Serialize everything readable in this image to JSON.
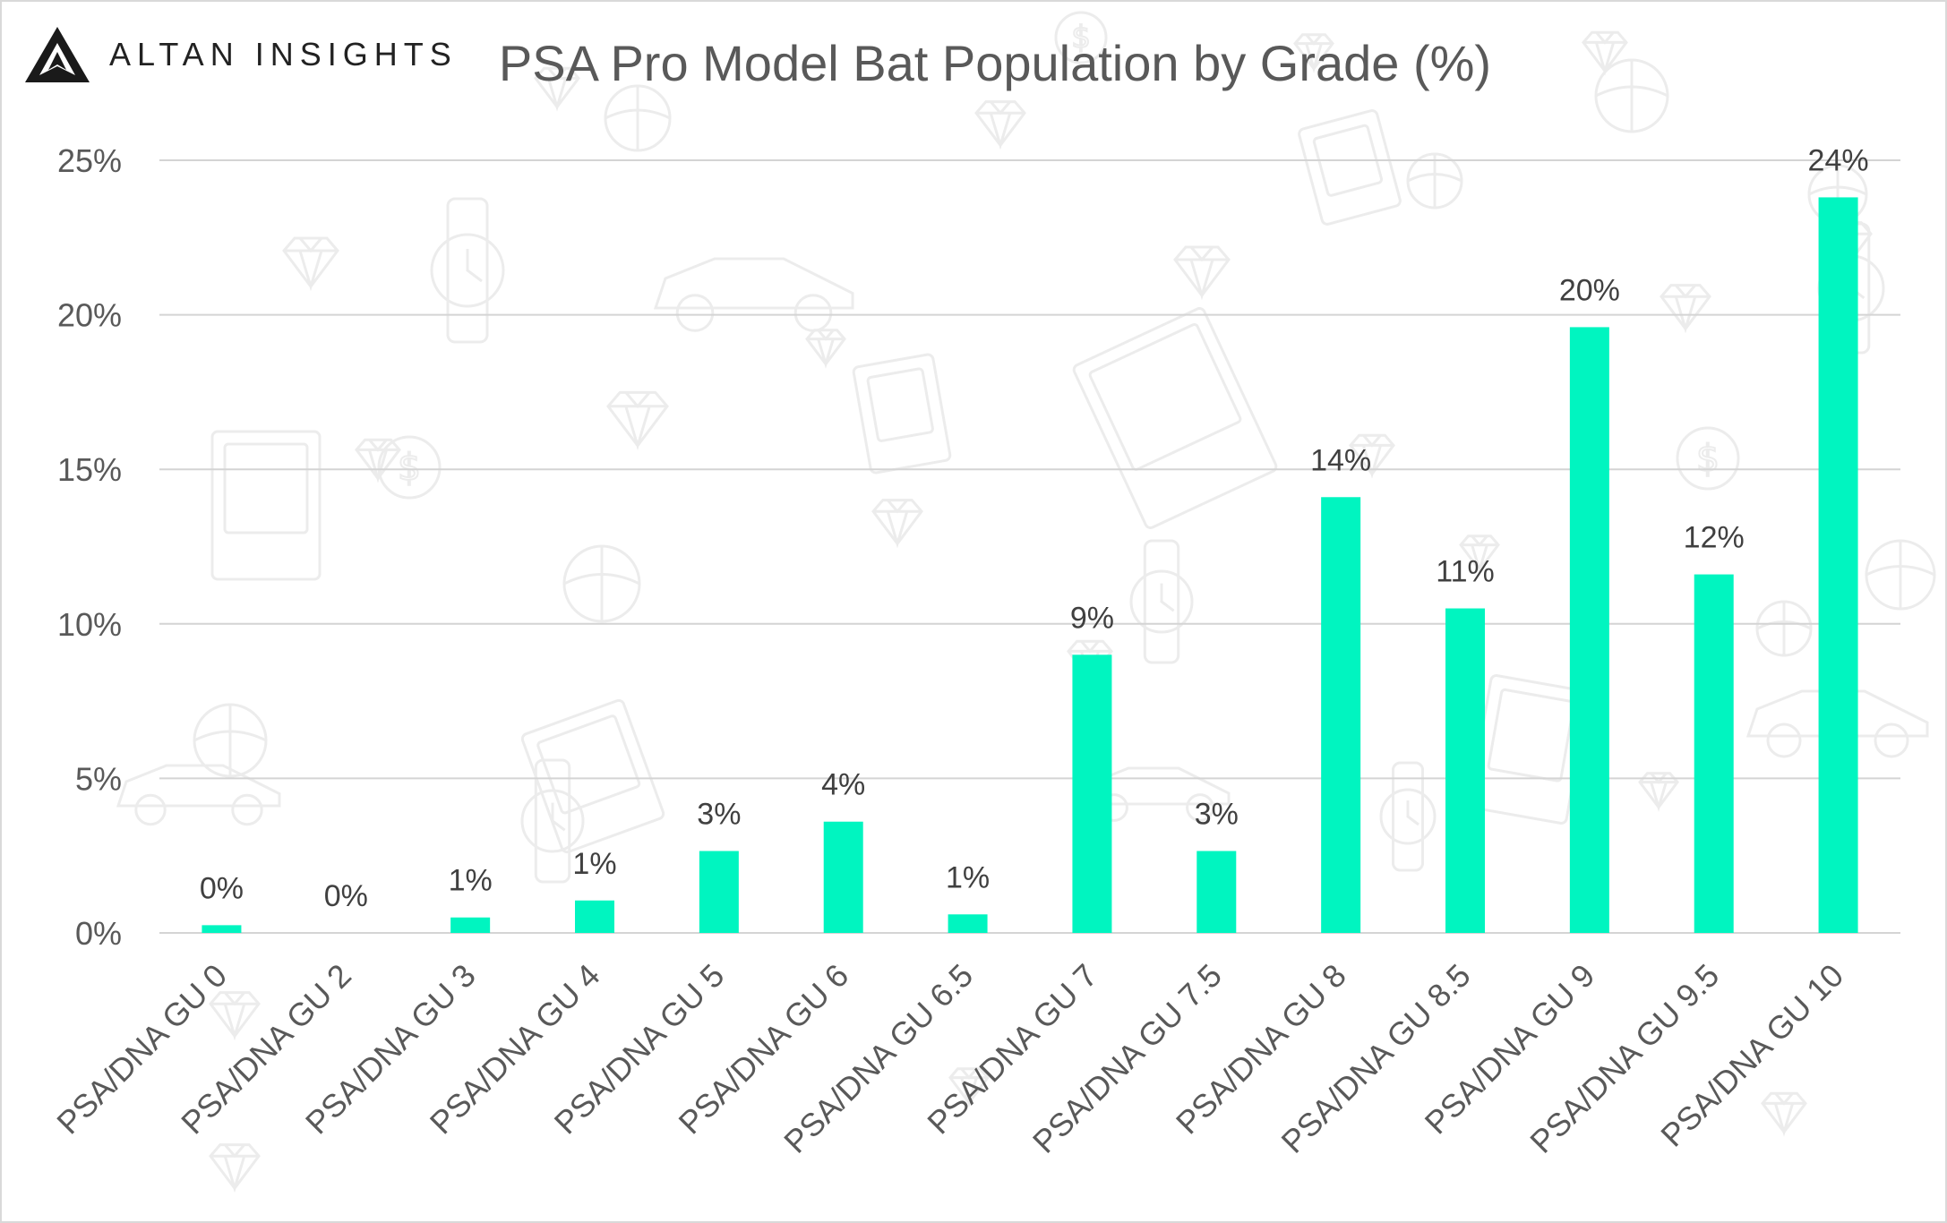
{
  "brand": {
    "name": "ALTAN INSIGHTS"
  },
  "colors": {
    "bar": "#00F5C0",
    "grid": "#d4d4d4",
    "text": "#595959",
    "label": "#404040"
  },
  "chart_data": {
    "type": "bar",
    "title": "PSA Pro Model Bat Population by Grade (%)",
    "xlabel": "",
    "ylabel": "",
    "ylim": [
      0,
      25
    ],
    "yticks": [
      0,
      5,
      10,
      15,
      20,
      25
    ],
    "ytick_labels": [
      "0%",
      "5%",
      "10%",
      "15%",
      "20%",
      "25%"
    ],
    "grid": true,
    "legend": "none",
    "categories": [
      "PSA/DNA GU 0",
      "PSA/DNA GU 2",
      "PSA/DNA GU 3",
      "PSA/DNA GU 4",
      "PSA/DNA GU 5",
      "PSA/DNA GU 6",
      "PSA/DNA GU 6.5",
      "PSA/DNA GU 7",
      "PSA/DNA GU 7.5",
      "PSA/DNA GU 8",
      "PSA/DNA GU 8.5",
      "PSA/DNA GU 9",
      "PSA/DNA GU 9.5",
      "PSA/DNA GU 10"
    ],
    "values": [
      0.25,
      0.0,
      0.5,
      1.05,
      2.65,
      3.6,
      0.6,
      9.0,
      2.65,
      14.1,
      10.5,
      19.6,
      11.6,
      23.8
    ],
    "data_labels": [
      "0%",
      "0%",
      "1%",
      "1%",
      "3%",
      "4%",
      "1%",
      "9%",
      "3%",
      "14%",
      "11%",
      "20%",
      "12%",
      "24%"
    ]
  }
}
